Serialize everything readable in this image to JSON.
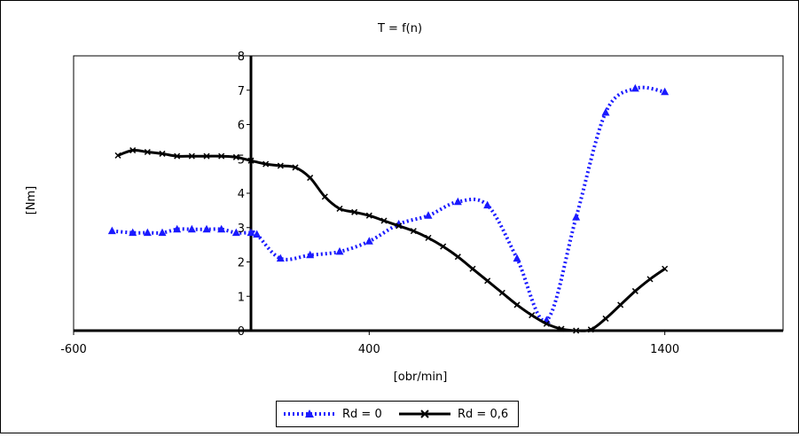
{
  "chart_data": {
    "type": "line",
    "title": "T = f(n)",
    "xlabel": "[obr/min]",
    "ylabel": "[Nm]",
    "xlim": [
      -600,
      1800
    ],
    "ylim": [
      0,
      8
    ],
    "x_tick_labels": [
      {
        "value": -600,
        "label": "-600"
      },
      {
        "value": 400,
        "label": "400"
      },
      {
        "value": 1400,
        "label": "1400"
      }
    ],
    "y_tick_labels": [
      {
        "value": 0,
        "label": "0"
      },
      {
        "value": 1,
        "label": "1"
      },
      {
        "value": 2,
        "label": "2"
      },
      {
        "value": 3,
        "label": "3"
      },
      {
        "value": 4,
        "label": "4"
      },
      {
        "value": 5,
        "label": "5"
      },
      {
        "value": 6,
        "label": "6"
      },
      {
        "value": 7,
        "label": "7"
      },
      {
        "value": 8,
        "label": "8"
      }
    ],
    "grid": false,
    "legend_position": "bottom",
    "series": [
      {
        "name": "Rd = 0",
        "color": "#1a1aff",
        "line_style": "dotted",
        "marker": "triangle",
        "x": [
          -470,
          -400,
          -350,
          -300,
          -250,
          -200,
          -150,
          -100,
          -50,
          0,
          20,
          100,
          200,
          300,
          400,
          500,
          600,
          700,
          800,
          900,
          1000,
          1100,
          1200,
          1300,
          1400
        ],
        "y": [
          2.9,
          2.85,
          2.85,
          2.85,
          2.95,
          2.95,
          2.95,
          2.95,
          2.85,
          2.85,
          2.8,
          2.1,
          2.2,
          2.3,
          2.6,
          3.1,
          3.35,
          3.75,
          3.65,
          2.1,
          0.3,
          3.3,
          6.35,
          7.05,
          6.95
        ]
      },
      {
        "name": "Rd = 0,6",
        "color": "#000000",
        "line_style": "solid",
        "marker": "x",
        "x": [
          -450,
          -400,
          -350,
          -300,
          -250,
          -200,
          -150,
          -100,
          -50,
          0,
          50,
          100,
          150,
          200,
          250,
          300,
          350,
          400,
          450,
          500,
          550,
          600,
          650,
          700,
          750,
          800,
          850,
          900,
          950,
          1000,
          1050,
          1100,
          1150,
          1200,
          1250,
          1300,
          1350,
          1400
        ],
        "y": [
          5.1,
          5.25,
          5.2,
          5.15,
          5.08,
          5.08,
          5.08,
          5.08,
          5.05,
          4.95,
          4.85,
          4.8,
          4.75,
          4.45,
          3.9,
          3.55,
          3.45,
          3.35,
          3.2,
          3.05,
          2.9,
          2.7,
          2.45,
          2.15,
          1.8,
          1.45,
          1.1,
          0.75,
          0.45,
          0.2,
          0.05,
          0.0,
          0.03,
          0.35,
          0.75,
          1.15,
          1.5,
          1.8
        ]
      }
    ]
  }
}
